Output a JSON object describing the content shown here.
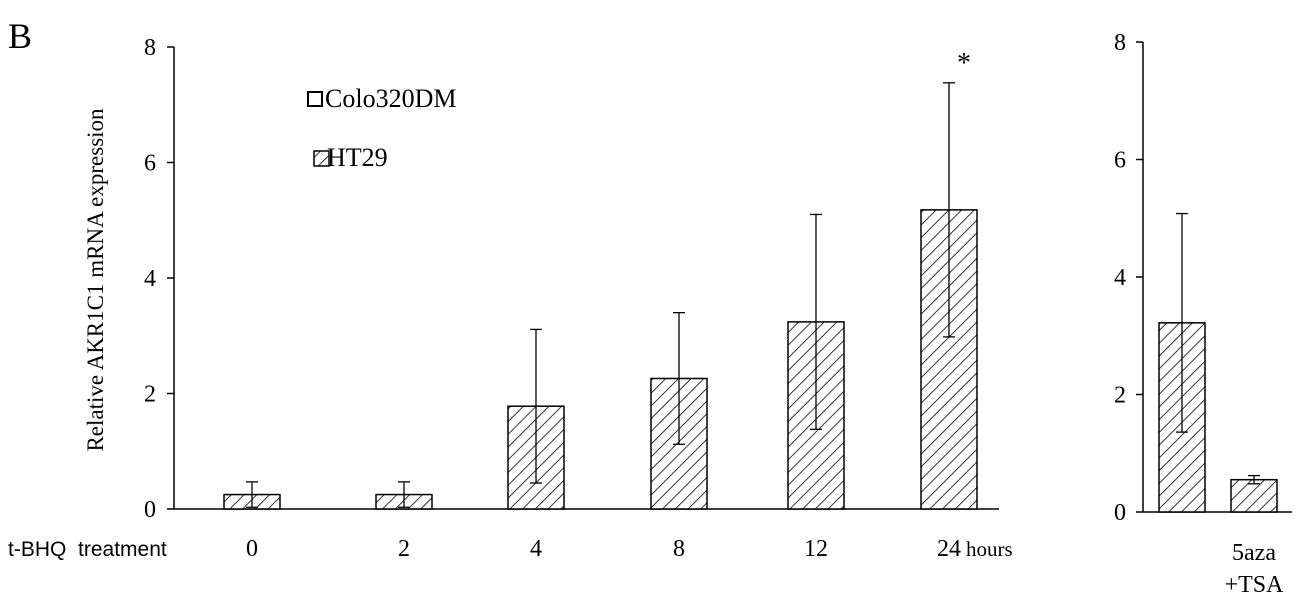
{
  "panel_label": "B",
  "chart_data": [
    {
      "type": "bar",
      "ylabel": "Relative  AKR1C1 mRNA expression",
      "ylim": [
        0,
        8
      ],
      "yticks": [
        "0",
        "2",
        "4",
        "6",
        "8"
      ],
      "categories": [
        "0",
        "2",
        "4",
        "8",
        "12",
        "24"
      ],
      "xlabel_prefix": "t-BHQ  treatment",
      "xlabel_suffix": "hours",
      "legend": {
        "placement": "top-left",
        "entries": [
          "Colo320DM",
          "HT29"
        ],
        "patterns": [
          "none",
          "hatch"
        ]
      },
      "series": [
        {
          "name": "HT29",
          "values": [
            0.25,
            0.25,
            1.78,
            2.26,
            3.24,
            5.18
          ],
          "errors": [
            0.22,
            0.22,
            1.33,
            1.14,
            1.86,
            2.2
          ]
        }
      ],
      "annotations": [
        {
          "category": "24",
          "text": "*"
        }
      ],
      "grid": false
    },
    {
      "type": "bar",
      "ylim": [
        0,
        8
      ],
      "yticks": [
        "0",
        "2",
        "4",
        "6",
        "8"
      ],
      "categories": [
        "",
        "5aza\n+TSA"
      ],
      "category_lines": [
        [
          ""
        ],
        [
          "5aza",
          "+TSA"
        ]
      ],
      "series": [
        {
          "name": "HT29",
          "values": [
            3.22,
            0.55
          ],
          "errors": [
            1.86,
            0.07
          ]
        }
      ],
      "grid": false
    }
  ]
}
